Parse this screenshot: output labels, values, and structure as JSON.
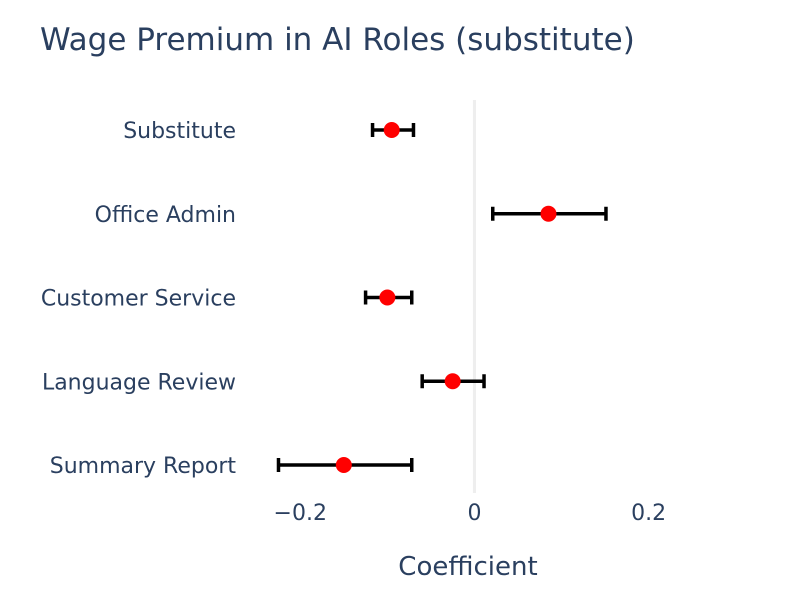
{
  "chart_data": {
    "type": "scatter",
    "title": "Wage Premium in AI Roles (substitute)",
    "xlabel": "Coefficient",
    "ylabel": "",
    "xlim": [
      -0.26,
      0.36
    ],
    "xticks": [
      -0.2,
      0,
      0.2
    ],
    "xtick_labels": [
      "−0.2",
      "0",
      "0.2"
    ],
    "zero_line": true,
    "grid": false,
    "categories": [
      "Substitute",
      "Office Admin",
      "Customer Service",
      "Language Review",
      "Summary Report"
    ],
    "series": [
      {
        "values": [
          -0.095,
          0.085,
          -0.1,
          -0.025,
          -0.15
        ],
        "error_low": [
          -0.117,
          0.021,
          -0.125,
          -0.06,
          -0.225
        ],
        "error_high": [
          -0.07,
          0.151,
          -0.072,
          0.011,
          -0.072
        ]
      }
    ],
    "marker_color": "#ff0000",
    "errorbar_color": "#000000",
    "zero_line_color": "#eeeeee",
    "text_color": "#2a3f5f"
  }
}
